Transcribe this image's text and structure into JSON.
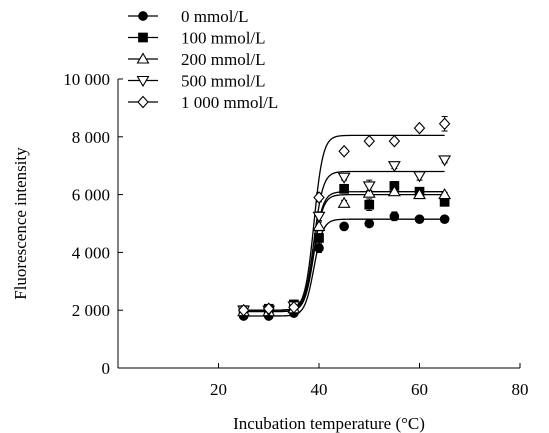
{
  "chart_data": {
    "type": "scatter",
    "title": "",
    "xlabel": "Incubation temperature (°C)",
    "ylabel": "Fluorescence intensity",
    "xlim": [
      0,
      80
    ],
    "ylim": [
      0,
      10000
    ],
    "x_ticks": [
      20,
      40,
      60,
      80
    ],
    "x_tick_labels": [
      "20",
      "40",
      "60",
      "80"
    ],
    "y_ticks": [
      0,
      2000,
      4000,
      6000,
      8000,
      10000
    ],
    "y_tick_labels": [
      "0",
      "2 000",
      "4 000",
      "6 000",
      "8 000",
      "10 000"
    ],
    "grid": false,
    "legend_position": "top-left",
    "x": [
      25,
      30,
      35,
      40,
      45,
      50,
      55,
      60,
      65
    ],
    "fit_midpoint": 39,
    "series": [
      {
        "name": "0 mmol/L",
        "marker": "filled-circle",
        "values": [
          1800,
          1800,
          1900,
          4150,
          4900,
          5000,
          5250,
          5150,
          5150
        ],
        "errors": [
          80,
          70,
          80,
          150,
          80,
          80,
          150,
          80,
          80
        ],
        "fit": [
          1800,
          5150
        ]
      },
      {
        "name": "100 mmol/L",
        "marker": "filled-square",
        "values": [
          2000,
          2050,
          2200,
          4500,
          6200,
          5650,
          6300,
          6100,
          5750
        ],
        "errors": [
          80,
          80,
          80,
          150,
          100,
          200,
          150,
          100,
          120
        ],
        "fit": [
          2000,
          6100
        ]
      },
      {
        "name": "200 mmol/L",
        "marker": "open-triangle-up",
        "values": [
          1950,
          1950,
          2050,
          4900,
          5700,
          6050,
          6100,
          6000,
          6000
        ],
        "errors": [
          80,
          80,
          80,
          150,
          100,
          100,
          100,
          80,
          80
        ],
        "fit": [
          1950,
          6000
        ]
      },
      {
        "name": "500 mmol/L",
        "marker": "open-triangle-down",
        "values": [
          2000,
          2000,
          2150,
          5250,
          6600,
          6300,
          7000,
          6650,
          7200
        ],
        "errors": [
          80,
          80,
          80,
          150,
          100,
          200,
          100,
          150,
          100
        ],
        "fit": [
          2000,
          6800
        ]
      },
      {
        "name": "1 000 mmol/L",
        "marker": "open-diamond",
        "values": [
          2000,
          2050,
          2100,
          5900,
          7500,
          7850,
          7850,
          8300,
          8450
        ],
        "errors": [
          80,
          80,
          80,
          150,
          100,
          100,
          100,
          100,
          250
        ],
        "fit": [
          2000,
          8050
        ]
      }
    ]
  }
}
